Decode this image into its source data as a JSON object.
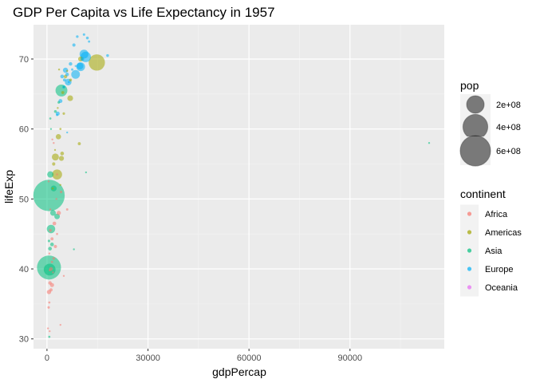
{
  "chart_data": {
    "type": "scatter",
    "title": "GDP Per Capita vs Life Expectancy in 1957",
    "xlabel": "gdpPercap",
    "ylabel": "lifeExp",
    "xlim": [
      -4000,
      118000
    ],
    "ylim": [
      28.6,
      74.9
    ],
    "x_ticks": [
      0,
      30000,
      60000,
      90000
    ],
    "x_tick_labels": [
      "0",
      "30000",
      "60000",
      "90000"
    ],
    "y_ticks": [
      30,
      40,
      50,
      60,
      70
    ],
    "y_tick_labels": [
      "30",
      "40",
      "50",
      "60",
      "70"
    ],
    "grid": true,
    "size_legend": {
      "title": "pop",
      "entries": [
        {
          "label": "2e+08",
          "value": 200000000
        },
        {
          "label": "4e+08",
          "value": 400000000
        },
        {
          "label": "6e+08",
          "value": 600000000
        }
      ]
    },
    "color_legend": {
      "title": "continent",
      "placement": "right"
    },
    "series": [
      {
        "name": "Africa",
        "color": "#F8766D",
        "points": [
          [
            1200,
            40.0,
            9000000
          ],
          [
            900,
            38.0,
            8000000
          ],
          [
            600,
            36.7,
            12000000
          ],
          [
            700,
            35.2,
            3000000
          ],
          [
            500,
            34.5,
            4000000
          ],
          [
            300,
            31.5,
            500000
          ],
          [
            800,
            31.1,
            1500000
          ],
          [
            4000,
            32.0,
            900000
          ],
          [
            1500,
            37.7,
            11000000
          ],
          [
            1800,
            39.5,
            2500000
          ],
          [
            2000,
            41.5,
            4500000
          ],
          [
            2500,
            43.2,
            7000000
          ],
          [
            3000,
            45.0,
            3000000
          ],
          [
            1000,
            45.5,
            5000000
          ],
          [
            1500,
            44.3,
            6000000
          ],
          [
            700,
            42.2,
            2000000
          ],
          [
            2200,
            46.5,
            9000000
          ],
          [
            3500,
            48.0,
            12000000
          ],
          [
            5000,
            39.0,
            600000
          ],
          [
            2800,
            50.0,
            1500000
          ],
          [
            4200,
            51.0,
            4000000
          ],
          [
            1000,
            48.5,
            2000000
          ],
          [
            500,
            52.5,
            1000000
          ],
          [
            3000,
            53.5,
            2500000
          ],
          [
            1600,
            58.5,
            600000
          ],
          [
            2000,
            58.0,
            1200000
          ],
          [
            6000,
            48.5,
            3500000
          ],
          [
            1200,
            37.0,
            7000000
          ],
          [
            800,
            39.8,
            2500000
          ],
          [
            1500,
            41.0,
            3500000
          ]
        ]
      },
      {
        "name": "Americas",
        "color": "#A3A500",
        "points": [
          [
            14800,
            69.5,
            171000000
          ],
          [
            10000,
            70.0,
            16000000
          ],
          [
            6900,
            64.4,
            21000000
          ],
          [
            4700,
            65.2,
            6000000
          ],
          [
            2500,
            56.0,
            32000000
          ],
          [
            5000,
            62.2,
            4000000
          ],
          [
            3400,
            58.9,
            18000000
          ],
          [
            4000,
            60.0,
            3000000
          ],
          [
            4300,
            55.8,
            16000000
          ],
          [
            3000,
            53.5,
            65000000
          ],
          [
            2000,
            55.0,
            7000000
          ],
          [
            9600,
            57.9,
            6000000
          ],
          [
            5500,
            67.5,
            8000000
          ],
          [
            6000,
            68.3,
            2000000
          ],
          [
            3200,
            63.0,
            1500000
          ],
          [
            1700,
            51.5,
            3000000
          ],
          [
            4000,
            52.0,
            1000000
          ],
          [
            3600,
            68.5,
            2500000
          ],
          [
            2400,
            57.0,
            2000000
          ],
          [
            4500,
            56.5,
            9000000
          ],
          [
            7000,
            67.0,
            5000000
          ]
        ]
      },
      {
        "name": "Asia",
        "color": "#00BF7D",
        "points": [
          [
            600,
            50.5,
            637000000
          ],
          [
            600,
            40.2,
            372000000
          ],
          [
            4300,
            65.5,
            91000000
          ],
          [
            800,
            39.9,
            90000000
          ],
          [
            1200,
            45.7,
            46000000
          ],
          [
            1000,
            53.5,
            26000000
          ],
          [
            2000,
            51.5,
            22000000
          ],
          [
            1800,
            48.0,
            21000000
          ],
          [
            3000,
            47.5,
            20000000
          ],
          [
            113500,
            58.0,
            200000
          ],
          [
            11600,
            53.8,
            500000
          ],
          [
            8000,
            42.8,
            1500000
          ],
          [
            900,
            42.9,
            9000000
          ],
          [
            700,
            30.3,
            3000000
          ],
          [
            1500,
            43.5,
            9000000
          ],
          [
            1200,
            60.0,
            2000000
          ],
          [
            2500,
            62.5,
            5000000
          ],
          [
            3500,
            63.8,
            4000000
          ],
          [
            600,
            44.0,
            4000000
          ],
          [
            5000,
            66.0,
            2000000
          ],
          [
            1000,
            61.5,
            3000000
          ]
        ]
      },
      {
        "name": "Europe",
        "color": "#00B0F6",
        "points": [
          [
            11500,
            70.3,
            71000000
          ],
          [
            11000,
            70.7,
            51000000
          ],
          [
            10000,
            68.9,
            50000000
          ],
          [
            8500,
            67.8,
            49000000
          ],
          [
            6300,
            66.7,
            29000000
          ],
          [
            5500,
            68.4,
            17000000
          ],
          [
            4500,
            67.5,
            9000000
          ],
          [
            8000,
            72.0,
            7000000
          ],
          [
            11000,
            73.5,
            4000000
          ],
          [
            12500,
            72.5,
            3500000
          ],
          [
            9000,
            73.2,
            4500000
          ],
          [
            10500,
            70.0,
            9000000
          ],
          [
            18000,
            70.5,
            5000000
          ],
          [
            7000,
            69.3,
            8000000
          ],
          [
            6000,
            67.8,
            8000000
          ],
          [
            5000,
            66.0,
            7000000
          ],
          [
            4000,
            64.0,
            10000000
          ],
          [
            3000,
            62.0,
            3000000
          ],
          [
            7500,
            68.5,
            3500000
          ],
          [
            8500,
            69.0,
            2000000
          ],
          [
            9800,
            69.0,
            30000000
          ],
          [
            5200,
            67.0,
            6000000
          ],
          [
            12000,
            73.0,
            5000000
          ],
          [
            6500,
            66.7,
            3000000
          ],
          [
            6000,
            59.5,
            600000
          ],
          [
            3200,
            62.2,
            10000000
          ]
        ]
      },
      {
        "name": "Oceania",
        "color": "#E76BF3",
        "points": []
      }
    ]
  }
}
